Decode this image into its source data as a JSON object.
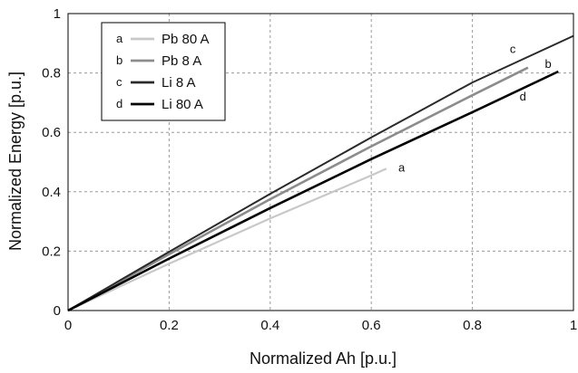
{
  "chart_data": {
    "type": "line",
    "xlabel": "Normalized Ah [p.u.]",
    "ylabel": "Normalized Energy [p.u.]",
    "xlim": [
      0,
      1
    ],
    "ylim": [
      0,
      1
    ],
    "xticks": [
      "0",
      "0.2",
      "0.4",
      "0.6",
      "0.8",
      "1"
    ],
    "yticks": [
      "0",
      "0.2",
      "0.4",
      "0.6",
      "0.8",
      "1"
    ],
    "grid": true,
    "grid_style": "dashed",
    "legend_position": "top-left",
    "series": [
      {
        "letter": "a",
        "name": "Pb 80 A",
        "color": "#c8c8c8",
        "x": [
          0,
          0.2,
          0.4,
          0.6,
          0.63
        ],
        "y": [
          0,
          0.158,
          0.31,
          0.455,
          0.478
        ]
      },
      {
        "letter": "b",
        "name": "Pb 8 A",
        "color": "#8c8c8c",
        "x": [
          0,
          0.2,
          0.4,
          0.6,
          0.8,
          0.91
        ],
        "y": [
          0,
          0.19,
          0.375,
          0.553,
          0.725,
          0.818
        ]
      },
      {
        "letter": "c",
        "name": "Li 8 A",
        "color": "#2a2a2a",
        "x": [
          0,
          0.2,
          0.4,
          0.6,
          0.8,
          1.0
        ],
        "y": [
          0,
          0.198,
          0.393,
          0.583,
          0.768,
          0.925
        ]
      },
      {
        "letter": "d",
        "name": "Li 80 A",
        "color": "#000000",
        "x": [
          0,
          0.2,
          0.4,
          0.6,
          0.8,
          0.97
        ],
        "y": [
          0,
          0.175,
          0.345,
          0.51,
          0.668,
          0.805
        ]
      }
    ],
    "curve_labels": [
      {
        "text": "a",
        "x": 0.66,
        "y": 0.48
      },
      {
        "text": "b",
        "x": 0.95,
        "y": 0.83
      },
      {
        "text": "c",
        "x": 0.88,
        "y": 0.88
      },
      {
        "text": "d",
        "x": 0.9,
        "y": 0.72
      }
    ]
  }
}
